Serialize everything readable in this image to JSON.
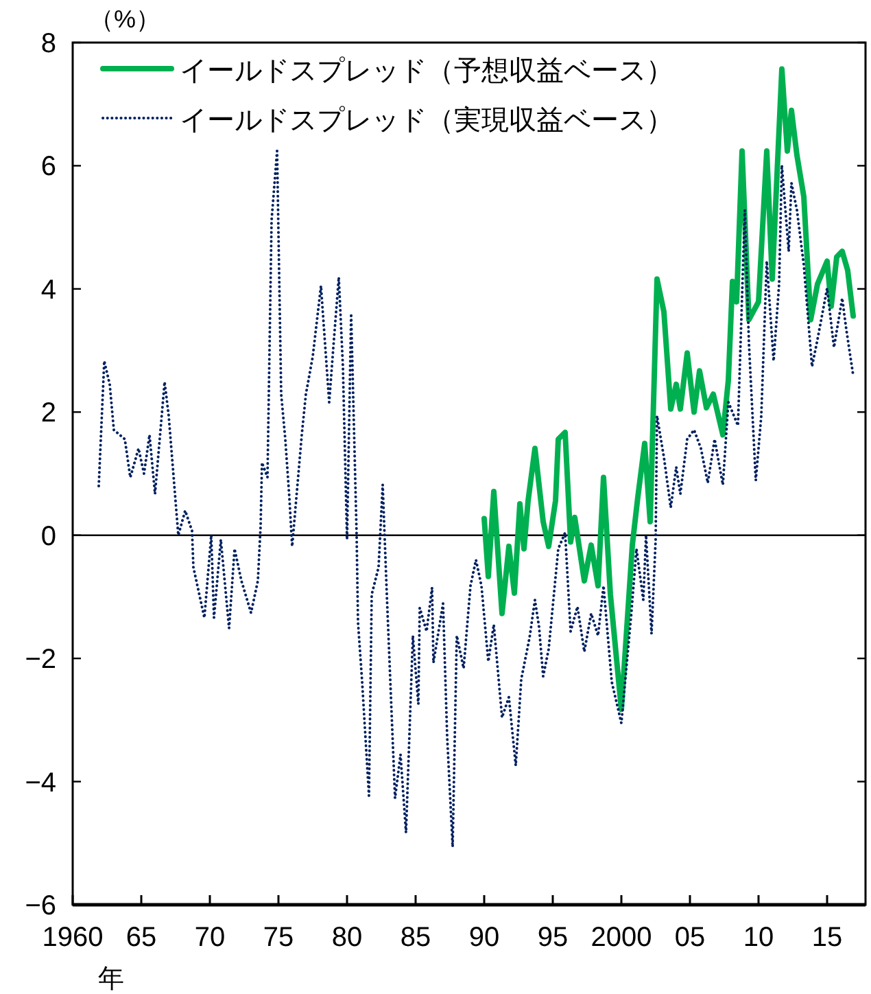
{
  "chart_data": {
    "type": "line",
    "xlabel": "年",
    "ylabel": "（%）",
    "legend": "top left",
    "xlim": [
      1960,
      2017.8
    ],
    "ylim": [
      -6,
      8
    ],
    "xticks": [
      {
        "value": 1960,
        "label": "1960"
      },
      {
        "value": 1965,
        "label": "65"
      },
      {
        "value": 1970,
        "label": "70"
      },
      {
        "value": 1975,
        "label": "75"
      },
      {
        "value": 1980,
        "label": "80"
      },
      {
        "value": 1985,
        "label": "85"
      },
      {
        "value": 1990,
        "label": "90"
      },
      {
        "value": 1995,
        "label": "95"
      },
      {
        "value": 2000,
        "label": "2000"
      },
      {
        "value": 2005,
        "label": "05"
      },
      {
        "value": 2010,
        "label": "10"
      },
      {
        "value": 2015,
        "label": "15"
      }
    ],
    "yticks": [
      -6,
      -4,
      -2,
      0,
      2,
      4,
      6,
      8
    ],
    "ref_lines": [
      {
        "axis": "y",
        "value": 0,
        "color": "#000000"
      }
    ],
    "series": [
      {
        "name": "イールドスプレッド（予想収益ベース）",
        "color": "#00b050",
        "line_style": "solid",
        "x": [
          1990.0,
          1990.3,
          1990.7,
          1991.3,
          1991.8,
          1992.2,
          1992.6,
          1992.9,
          1993.2,
          1993.7,
          1994.3,
          1994.7,
          1995.2,
          1995.4,
          1995.9,
          1996.3,
          1996.6,
          1997.3,
          1997.8,
          1998.3,
          1998.7,
          1999.2,
          2000.0,
          2000.8,
          2001.2,
          2001.7,
          2002.1,
          2002.6,
          2003.1,
          2003.6,
          2004.0,
          2004.3,
          2004.8,
          2005.3,
          2005.7,
          2006.2,
          2006.7,
          2007.4,
          2007.8,
          2008.1,
          2008.4,
          2008.8,
          2009.3,
          2010.0,
          2010.6,
          2011.0,
          2011.7,
          2012.1,
          2012.4,
          2012.8,
          2013.3,
          2013.8,
          2014.3,
          2015.0,
          2015.3,
          2015.7,
          2016.1,
          2016.5,
          2016.9
        ],
        "values": [
          0.27,
          -0.67,
          0.71,
          -1.27,
          -0.18,
          -0.94,
          0.51,
          -0.22,
          0.56,
          1.41,
          0.22,
          -0.18,
          0.56,
          1.56,
          1.67,
          -0.11,
          0.29,
          -0.74,
          -0.16,
          -0.82,
          0.94,
          -0.96,
          -2.83,
          -0.16,
          0.62,
          1.49,
          0.22,
          4.16,
          3.63,
          2.05,
          2.45,
          2.05,
          2.96,
          2.0,
          2.67,
          2.07,
          2.29,
          1.63,
          2.52,
          4.12,
          3.79,
          6.24,
          3.5,
          3.79,
          6.24,
          4.16,
          7.57,
          6.24,
          6.9,
          6.17,
          5.5,
          3.5,
          4.08,
          4.45,
          3.72,
          4.52,
          4.61,
          4.3,
          3.56
        ]
      },
      {
        "name": "イールドスプレッド（実現収益ベース）",
        "color": "#002060",
        "line_style": "dotted",
        "x": [
          1961.9,
          1962.3,
          1962.7,
          1963.0,
          1963.8,
          1964.2,
          1964.8,
          1965.2,
          1965.6,
          1966.0,
          1966.7,
          1967.0,
          1967.7,
          1968.2,
          1968.7,
          1968.8,
          1969.6,
          1970.1,
          1970.3,
          1970.8,
          1971.4,
          1971.8,
          1972.3,
          1973.0,
          1973.5,
          1973.7,
          1973.8,
          1974.2,
          1974.5,
          1974.9,
          1975.2,
          1975.5,
          1975.8,
          1976.0,
          1976.7,
          1977.0,
          1977.5,
          1978.1,
          1978.7,
          1979.0,
          1979.4,
          1979.7,
          1980.0,
          1980.3,
          1980.7,
          1980.8,
          1981.1,
          1981.6,
          1981.8,
          1982.3,
          1982.6,
          1982.9,
          1983.5,
          1983.9,
          1984.3,
          1984.8,
          1985.2,
          1985.3,
          1985.8,
          1986.2,
          1986.3,
          1987.0,
          1987.3,
          1987.7,
          1988.0,
          1988.5,
          1989.0,
          1989.4,
          1989.8,
          1990.3,
          1990.7,
          1991.3,
          1991.8,
          1992.3,
          1992.7,
          1993.3,
          1993.7,
          1994.0,
          1994.3,
          1994.7,
          1995.4,
          1995.9,
          1996.3,
          1996.8,
          1997.3,
          1997.8,
          1998.3,
          1998.7,
          1999.3,
          2000.0,
          2000.7,
          2001.1,
          2001.6,
          2001.8,
          2002.2,
          2002.5,
          2002.6,
          2003.1,
          2003.6,
          2004.0,
          2004.3,
          2004.8,
          2005.3,
          2005.8,
          2006.3,
          2006.8,
          2007.4,
          2007.8,
          2008.5,
          2009.0,
          2009.3,
          2009.8,
          2010.2,
          2010.6,
          2011.1,
          2011.5,
          2011.7,
          2012.2,
          2012.4,
          2012.8,
          2013.3,
          2013.9,
          2014.3,
          2015.0,
          2015.5,
          2016.1,
          2016.4,
          2016.9
        ],
        "values": [
          0.8,
          2.83,
          2.45,
          1.71,
          1.56,
          0.94,
          1.41,
          1.0,
          1.63,
          0.67,
          2.49,
          1.94,
          0,
          0.4,
          0.07,
          -0.52,
          -1.34,
          0,
          -1.34,
          -0.07,
          -1.51,
          -0.22,
          -0.74,
          -1.26,
          -0.74,
          0.15,
          1.18,
          0.94,
          5.12,
          6.24,
          2.29,
          1.56,
          0.6,
          -0.18,
          1.63,
          2.29,
          2.9,
          4.05,
          2.16,
          3.05,
          4.19,
          2.74,
          -0.07,
          3.6,
          0,
          -1.41,
          -2.37,
          -4.23,
          -0.96,
          -0.52,
          0.82,
          -0.96,
          -4.27,
          -3.56,
          -4.83,
          -1.63,
          -2.74,
          -1.18,
          -1.56,
          -0.85,
          -2.07,
          -1.11,
          -3.27,
          -5.06,
          -1.63,
          -2.16,
          -0.82,
          -0.4,
          -0.82,
          -2.05,
          -1.45,
          -2.96,
          -2.63,
          -3.74,
          -2.34,
          -1.67,
          -1.05,
          -1.49,
          -2.29,
          -1.85,
          -0.22,
          0.04,
          -1.56,
          -1.16,
          -1.89,
          -1.27,
          -1.63,
          -0.82,
          -2.38,
          -3.05,
          -1.34,
          -0.22,
          -1.05,
          0,
          -1.6,
          -0.07,
          1.94,
          1.27,
          0.45,
          1.11,
          0.67,
          1.56,
          1.71,
          1.41,
          0.85,
          1.56,
          0.82,
          2.16,
          1.78,
          5.28,
          3.12,
          0.89,
          1.94,
          4.45,
          2.83,
          4.08,
          6.01,
          4.61,
          5.72,
          5.28,
          4.39,
          2.74,
          3.18,
          4.01,
          3.05,
          3.85,
          3.34,
          2.6
        ]
      }
    ]
  }
}
